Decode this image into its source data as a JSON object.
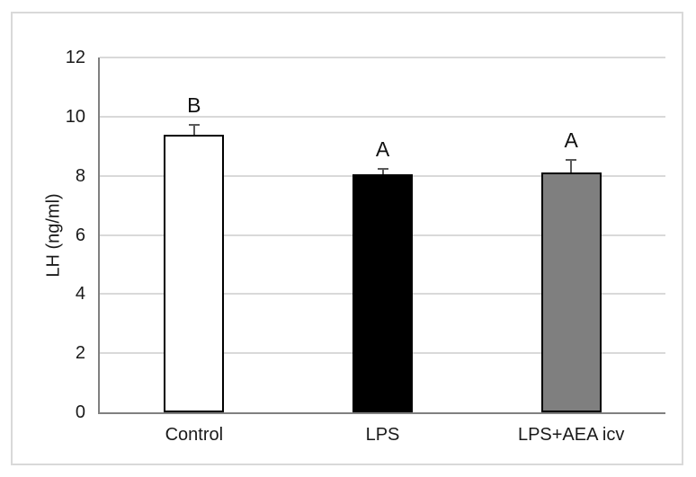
{
  "chart_data": {
    "type": "bar",
    "title": "",
    "ylabel": "LH (ng/ml)",
    "xlabel": "",
    "categories": [
      "Control",
      "LPS",
      "LPS+AEA icv"
    ],
    "values": [
      9.4,
      8.05,
      8.1
    ],
    "errors": [
      0.3,
      0.15,
      0.4
    ],
    "error_direction": "plus",
    "significance_letters": [
      "B",
      "A",
      "A"
    ],
    "bar_fill_colors": [
      "#ffffff",
      "#000000",
      "#7f7f7f"
    ],
    "bar_border_color": "#000000",
    "yticks": [
      0,
      2,
      4,
      6,
      8,
      10,
      12
    ],
    "ylim": [
      0,
      12
    ],
    "grid": true,
    "legend": false,
    "colors": {
      "gridline": "#d9d9d9",
      "axis_line": "#808080",
      "error_bar": "#595959",
      "text": "#1a1a1a",
      "chart_border": "#d9d9d9",
      "background": "#ffffff"
    }
  }
}
